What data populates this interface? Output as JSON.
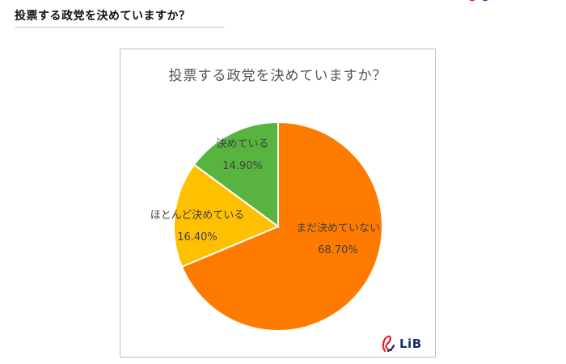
{
  "page": {
    "heading": "投票する政党を決めていますか？"
  },
  "chart_data": {
    "type": "pie",
    "title": "投票する政党を決めていますか？",
    "slices": [
      {
        "label": "まだ決めていない",
        "value": 68.7,
        "value_label": "68.70%",
        "color": "#FF7B00"
      },
      {
        "label": "ほとんど決めている",
        "value": 16.4,
        "value_label": "16.40%",
        "color": "#FFC000"
      },
      {
        "label": "決めている",
        "value": 14.9,
        "value_label": "14.90%",
        "color": "#58B43E"
      }
    ],
    "start_angle": "12 o'clock",
    "direction": "clockwise"
  },
  "logo": {
    "text": "LiB",
    "color": "#1a2b6b",
    "accent": "#e8202a"
  },
  "colors": {
    "frame_border": "#bdbdbd",
    "title_text": "#555555"
  }
}
